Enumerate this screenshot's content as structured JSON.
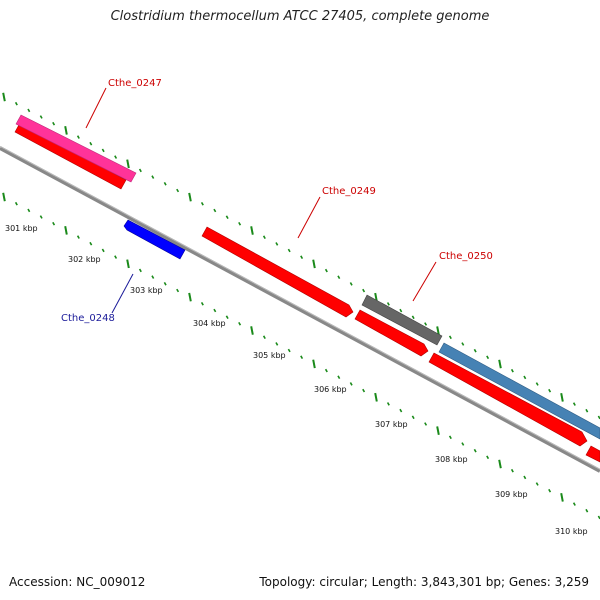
{
  "title": "Clostridium thermocellum ATCC 27405, complete genome",
  "footer": {
    "accession": "Accession: NC_009012",
    "topology": "Topology: circular; Length: 3,843,301 bp; Genes: 3,259"
  },
  "colors": {
    "backbone": "#888888",
    "tick": "#1a8a1a",
    "forward_gene": "#ff0000",
    "reverse_gene": "#0000ff",
    "label_red": "#cc0000",
    "label_blue": "#1a1a99",
    "pink": "#ff3399",
    "gray": "#666666",
    "steel_blue": "#4682b4"
  },
  "kbp_labels": [
    "301 kbp",
    "302 kbp",
    "303 kbp",
    "304 kbp",
    "305 kbp",
    "306 kbp",
    "307 kbp",
    "308 kbp",
    "309 kbp",
    "310 kbp"
  ],
  "gene_labels": [
    {
      "name": "Cthe_0247",
      "strand": "forward"
    },
    {
      "name": "Cthe_0248",
      "strand": "reverse"
    },
    {
      "name": "Cthe_0249",
      "strand": "forward"
    },
    {
      "name": "Cthe_0250",
      "strand": "forward"
    }
  ]
}
